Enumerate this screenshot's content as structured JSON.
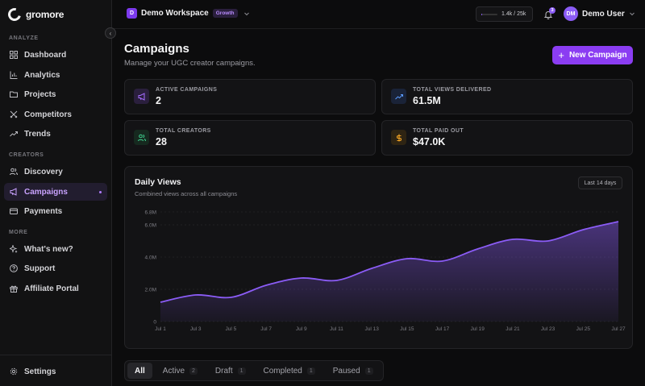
{
  "app": {
    "name": "gromore"
  },
  "sidebar": {
    "sections": {
      "analyze": "ANALYZE",
      "creators": "CREATORS",
      "more": "MORE"
    },
    "items": [
      {
        "label": "Dashboard",
        "icon": "dashboard-icon"
      },
      {
        "label": "Analytics",
        "icon": "bar-chart-icon"
      },
      {
        "label": "Projects",
        "icon": "folder-icon"
      },
      {
        "label": "Competitors",
        "icon": "crossed-swords-icon"
      },
      {
        "label": "Trends",
        "icon": "trend-line-icon"
      },
      {
        "label": "Discovery",
        "icon": "users-icon"
      },
      {
        "label": "Campaigns",
        "icon": "megaphone-icon",
        "active": true
      },
      {
        "label": "Payments",
        "icon": "credit-card-icon"
      },
      {
        "label": "What's new?",
        "icon": "sparkles-icon"
      },
      {
        "label": "Support",
        "icon": "help-circle-icon"
      },
      {
        "label": "Affiliate Portal",
        "icon": "gift-icon"
      }
    ],
    "settings": "Settings"
  },
  "topbar": {
    "workspace": {
      "initial": "D",
      "name": "Demo Workspace",
      "plan": "Growth"
    },
    "usage": {
      "text": "1.4k / 25k",
      "fraction": 0.056
    },
    "notifications": {
      "count": "3"
    },
    "user": {
      "initials": "DM",
      "name": "Demo User"
    }
  },
  "page": {
    "title": "Campaigns",
    "subtitle": "Manage your UGC creator campaigns.",
    "new_button": "New Campaign"
  },
  "stats": [
    {
      "label": "ACTIVE CAMPAIGNS",
      "value": "2",
      "icon": "megaphone-icon",
      "color": "#a66cff",
      "bg": "#2a1f3d"
    },
    {
      "label": "TOTAL VIEWS DELIVERED",
      "value": "61.5M",
      "icon": "trend-up-icon",
      "color": "#5b9bff",
      "bg": "#1a2338"
    },
    {
      "label": "TOTAL CREATORS",
      "value": "28",
      "icon": "users-icon",
      "color": "#3ecf8e",
      "bg": "#16291f"
    },
    {
      "label": "TOTAL PAID OUT",
      "value": "$47.0K",
      "icon": "dollar-icon",
      "color": "#f5a524",
      "bg": "#2e2413"
    }
  ],
  "chart": {
    "title": "Daily Views",
    "subtitle": "Combined views across all campaigns",
    "range_label": "Last 14 days",
    "line_color": "#8b5cf6"
  },
  "chart_data": {
    "type": "area",
    "x": [
      "Jul 1",
      "Jul 3",
      "Jul 5",
      "Jul 7",
      "Jul 9",
      "Jul 11",
      "Jul 13",
      "Jul 15",
      "Jul 17",
      "Jul 19",
      "Jul 21",
      "Jul 23",
      "Jul 25",
      "Jul 27"
    ],
    "series": [
      {
        "values": [
          1.2,
          1.65,
          1.5,
          2.25,
          2.7,
          2.55,
          3.3,
          3.9,
          3.75,
          4.5,
          5.1,
          5.0,
          5.7,
          6.2
        ]
      }
    ],
    "yticks": [
      "0",
      "2.0M",
      "4.0M",
      "6.0M",
      "6.8M"
    ],
    "ytick_values": [
      0,
      2,
      4,
      6,
      6.8
    ],
    "ylim": [
      0,
      6.8
    ],
    "grid": true,
    "y_unit": "millions of views"
  },
  "tabs": [
    {
      "label": "All",
      "count": "",
      "active": true
    },
    {
      "label": "Active",
      "count": "2"
    },
    {
      "label": "Draft",
      "count": "1"
    },
    {
      "label": "Completed",
      "count": "1"
    },
    {
      "label": "Paused",
      "count": "1"
    }
  ]
}
